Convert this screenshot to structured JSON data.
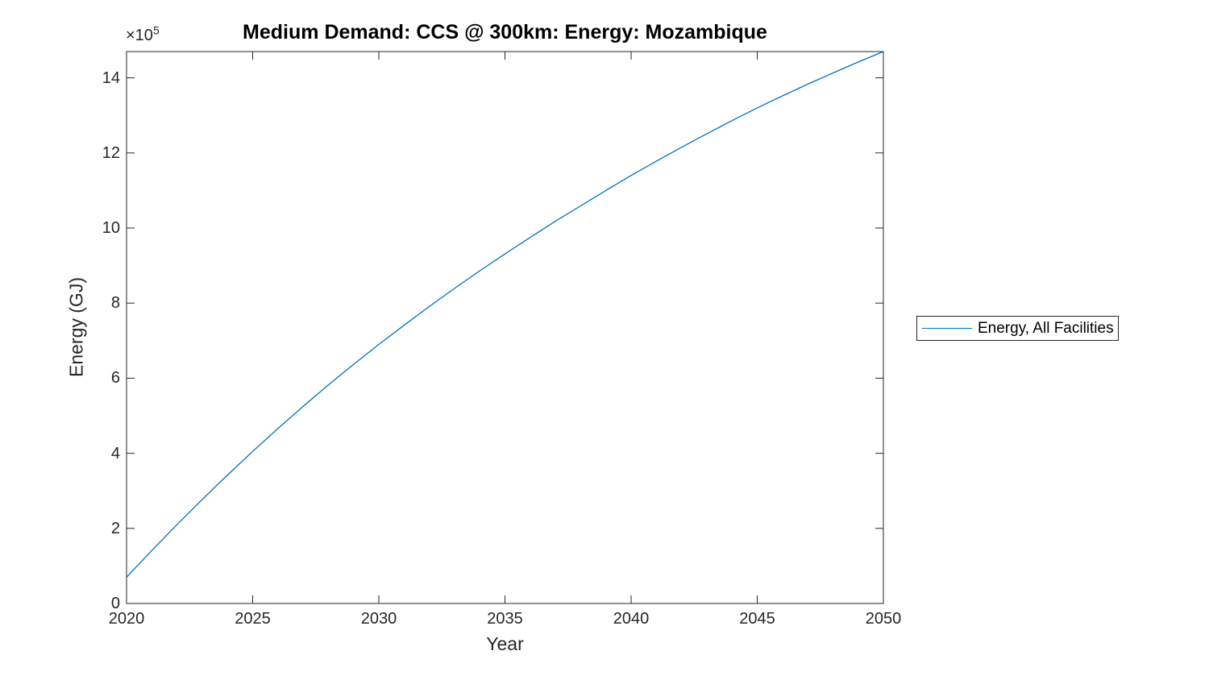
{
  "figure": {
    "title": "Medium Demand: CCS @ 300km: Energy: Mozambique",
    "background_color": "#ffffff"
  },
  "axes": {
    "x_label": "Year",
    "y_label": "Energy (GJ)",
    "y_multiplier_base": "×10",
    "y_multiplier_exp": "5",
    "x_ticks": [
      2020,
      2025,
      2030,
      2035,
      2040,
      2045,
      2050
    ],
    "y_ticks": [
      0,
      2,
      4,
      6,
      8,
      10,
      12,
      14
    ],
    "axis_color": "#262626",
    "tick_direction": "in",
    "box": true
  },
  "legend": {
    "position": "right-outside",
    "entries": [
      {
        "label": "Energy, All Facilities",
        "color": "#0072BD"
      }
    ]
  },
  "chart_data": {
    "type": "line",
    "title": "Medium Demand: CCS @ 300km: Energy: Mozambique",
    "xlabel": "Year",
    "ylabel": "Energy (GJ)",
    "value_unit": "GJ × 10^5",
    "xlim": [
      2020,
      2050
    ],
    "ylim": [
      0,
      14.7
    ],
    "grid": false,
    "legend_position": "right-outside",
    "series": [
      {
        "name": "Energy, All Facilities",
        "color": "#0072BD",
        "x": [
          2020,
          2021,
          2022,
          2023,
          2024,
          2025,
          2026,
          2027,
          2028,
          2029,
          2030,
          2031,
          2032,
          2033,
          2034,
          2035,
          2036,
          2037,
          2038,
          2039,
          2040,
          2041,
          2042,
          2043,
          2044,
          2045,
          2046,
          2047,
          2048,
          2049,
          2050
        ],
        "values": [
          0.7,
          1.41,
          2.1,
          2.77,
          3.42,
          4.05,
          4.66,
          5.25,
          5.82,
          6.37,
          6.9,
          7.41,
          7.91,
          8.39,
          8.86,
          9.31,
          9.75,
          10.18,
          10.59,
          11.0,
          11.4,
          11.78,
          12.15,
          12.51,
          12.86,
          13.2,
          13.52,
          13.83,
          14.13,
          14.42,
          14.7
        ]
      }
    ]
  }
}
